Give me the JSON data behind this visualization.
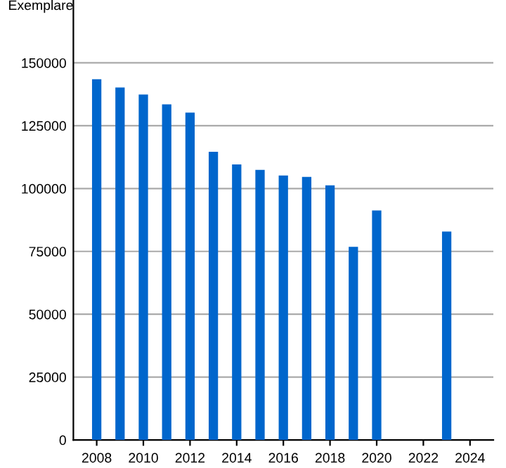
{
  "chart_data": {
    "type": "bar",
    "ylabel": "Exemplare",
    "x": [
      2008,
      2009,
      2010,
      2011,
      2012,
      2013,
      2014,
      2015,
      2016,
      2017,
      2018,
      2019,
      2020,
      2023
    ],
    "values": [
      143500,
      140200,
      137400,
      133500,
      130200,
      114600,
      109600,
      107400,
      105200,
      104600,
      101300,
      76800,
      91300,
      82900
    ],
    "color": "#0066cc",
    "xlim": [
      2007,
      2025
    ],
    "xticks": [
      2008,
      2010,
      2012,
      2014,
      2016,
      2018,
      2020,
      2022,
      2024
    ],
    "ylim": [
      0,
      175000
    ],
    "yticks": [
      0,
      25000,
      50000,
      75000,
      100000,
      125000,
      150000
    ],
    "grid": "y"
  }
}
